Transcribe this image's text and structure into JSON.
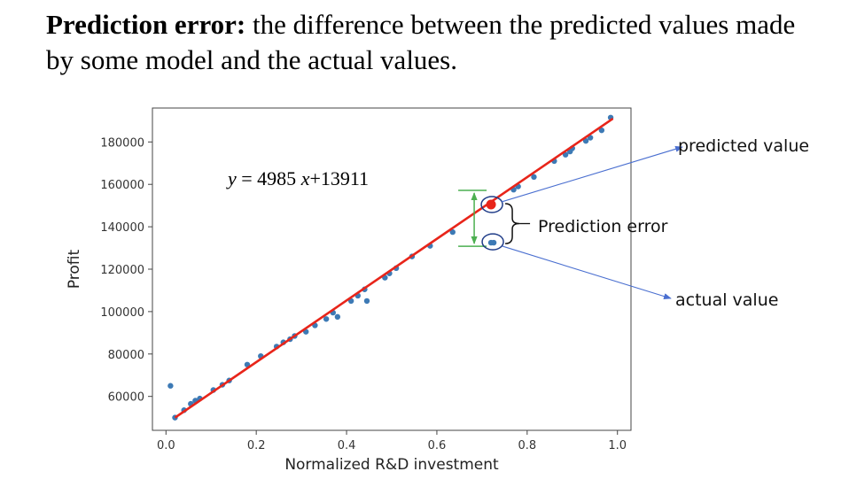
{
  "headline": {
    "term": "Prediction error:",
    "definition": " the difference between the predicted values made by some model and the actual values."
  },
  "annotations": {
    "equation_y": "y",
    "equation_mid": " = 4985 ",
    "equation_x": "x",
    "equation_tail": "+13911",
    "predicted_value": "predicted value",
    "prediction_error": "Prediction error",
    "actual_value": "actual value"
  },
  "colors": {
    "points": "#3d7ab5",
    "fit_line": "#e8251a",
    "highlight_point": "#e8251a",
    "error_bar": "#4caf50",
    "arrows": "#4a6fd0",
    "circles": "#1f3c88"
  },
  "chart_data": {
    "type": "scatter",
    "xlabel": "Normalized R&D investment",
    "ylabel": "Profit",
    "xlim": [
      -0.03,
      1.03
    ],
    "ylim": [
      44000,
      196000
    ],
    "xticks": [
      0.0,
      0.2,
      0.4,
      0.6,
      0.8,
      1.0
    ],
    "xtick_labels": [
      "0.0",
      "0.2",
      "0.4",
      "0.6",
      "0.8",
      "1.0"
    ],
    "yticks": [
      60000,
      80000,
      100000,
      120000,
      140000,
      160000,
      180000
    ],
    "ytick_labels": [
      "60000",
      "80000",
      "100000",
      "120000",
      "140000",
      "160000",
      "180000"
    ],
    "fit_line": {
      "x": [
        0.02,
        0.99
      ],
      "y": [
        50000,
        191000
      ]
    },
    "highlight": {
      "x": 0.72,
      "predicted": 150500,
      "actual": 132500
    },
    "points": {
      "x": [
        0.01,
        0.02,
        0.04,
        0.055,
        0.065,
        0.075,
        0.105,
        0.125,
        0.14,
        0.18,
        0.21,
        0.245,
        0.26,
        0.275,
        0.285,
        0.31,
        0.33,
        0.355,
        0.37,
        0.38,
        0.41,
        0.425,
        0.44,
        0.445,
        0.485,
        0.495,
        0.51,
        0.545,
        0.585,
        0.635,
        0.72,
        0.77,
        0.78,
        0.815,
        0.86,
        0.885,
        0.895,
        0.9,
        0.93,
        0.94,
        0.965,
        0.985
      ],
      "y": [
        65000,
        50000,
        53500,
        56500,
        58000,
        59000,
        63000,
        65500,
        67500,
        75000,
        79000,
        83500,
        85500,
        87000,
        88500,
        90500,
        93500,
        96500,
        99500,
        97500,
        105000,
        107500,
        110500,
        105000,
        116000,
        118000,
        120500,
        126000,
        131000,
        137500,
        132500,
        157500,
        159000,
        163500,
        171000,
        174000,
        175500,
        177000,
        180500,
        182000,
        185500,
        191500
      ]
    }
  }
}
